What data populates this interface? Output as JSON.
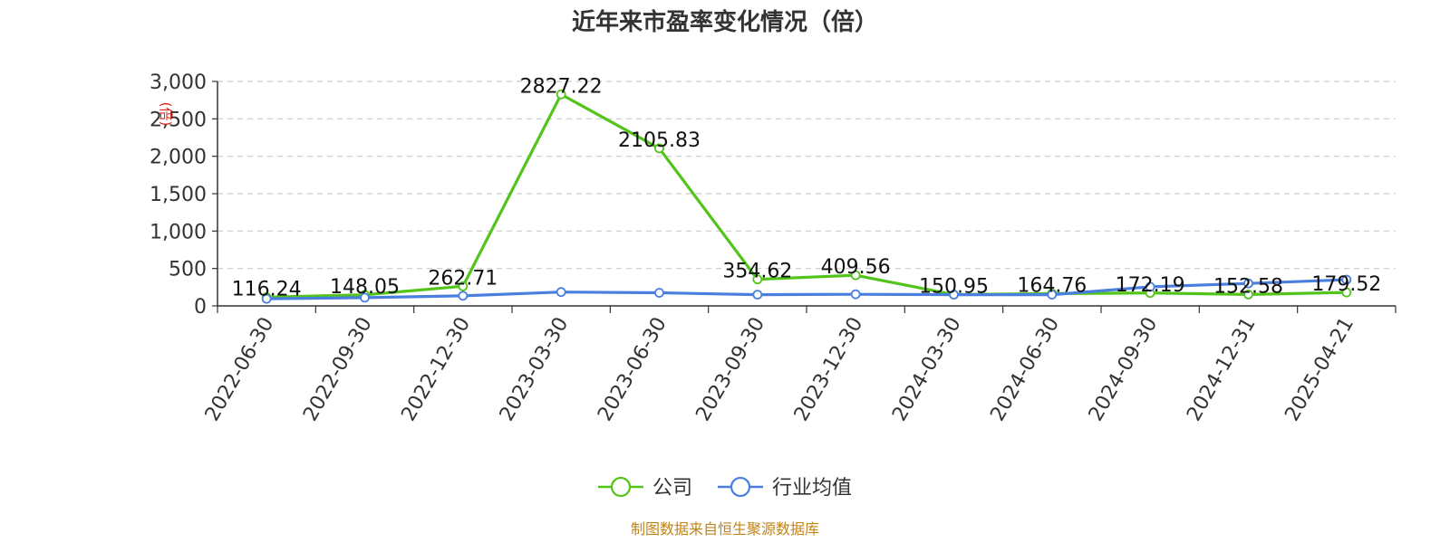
{
  "chart_data": {
    "type": "line",
    "title": "近年来市盈率变化情况（倍）",
    "categories": [
      "2022-06-30",
      "2022-09-30",
      "2022-12-30",
      "2023-03-30",
      "2023-06-30",
      "2023-09-30",
      "2023-12-30",
      "2024-03-30",
      "2024-06-30",
      "2024-09-30",
      "2024-12-31",
      "2025-04-21"
    ],
    "series": [
      {
        "name": "公司",
        "color": "#52c41a",
        "values": [
          116.24,
          148.05,
          262.71,
          2827.22,
          2105.83,
          354.62,
          409.56,
          150.95,
          164.76,
          172.19,
          152.58,
          179.52
        ],
        "labels": [
          "116.24",
          "148.05",
          "262.71",
          "2827.22",
          "2105.83",
          "354.62",
          "409.56",
          "150.95",
          "164.76",
          "172.19",
          "152.58",
          "179.52"
        ]
      },
      {
        "name": "行业均值",
        "color": "#4a7fe0",
        "values": [
          95,
          110,
          135,
          185,
          175,
          150,
          155,
          150,
          150,
          255,
          300,
          350
        ]
      }
    ],
    "yticks": [
      "0",
      "500",
      "1,000",
      "1,500",
      "2,000",
      "2,500",
      "3,000"
    ],
    "ylim": [
      0,
      3000
    ],
    "ylabel": "",
    "xlabel": "",
    "grid": true,
    "legend_position": "bottom"
  },
  "unit_mark": "(倍)",
  "source_text": "制图数据来自恒生聚源数据库",
  "source_color": "#c0841a"
}
